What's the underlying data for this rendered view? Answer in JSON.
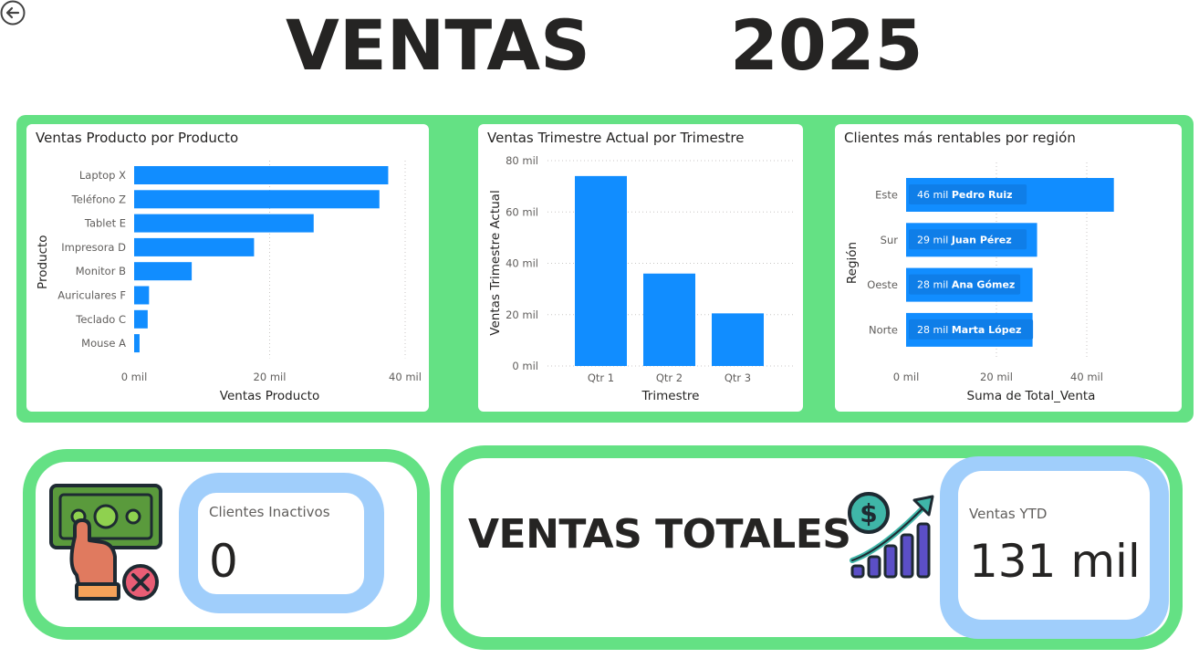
{
  "header": {
    "title_word": "VENTAS",
    "title_year": "2025"
  },
  "colors": {
    "accent_green": "#64e184",
    "bar_blue": "#118dff",
    "panel_blue": "#a0cefb"
  },
  "charts": {
    "product": {
      "title": "Ventas Producto por Producto",
      "xlabel": "Ventas Producto",
      "ylabel": "Producto",
      "ticks": [
        "0 mil",
        "20 mil",
        "40 mil"
      ]
    },
    "quarter": {
      "title": "Ventas Trimestre Actual por Trimestre",
      "xlabel": "Trimestre",
      "ylabel": "Ventas Trimestre Actual",
      "ticks": [
        "0 mil",
        "20 mil",
        "40 mil",
        "60 mil",
        "80 mil"
      ]
    },
    "region": {
      "title": "Clientes más rentables por región",
      "xlabel": "Suma de Total_Venta",
      "ylabel": "Región",
      "ticks": [
        "0 mil",
        "20 mil",
        "40 mil"
      ]
    }
  },
  "chart_data": [
    {
      "type": "bar",
      "orientation": "horizontal",
      "title": "Ventas Producto por Producto",
      "xlabel": "Ventas Producto",
      "ylabel": "Producto",
      "categories": [
        "Laptop X",
        "Teléfono Z",
        "Tablet E",
        "Impresora D",
        "Monitor B",
        "Auriculares F",
        "Teclado C",
        "Mouse A"
      ],
      "values": [
        37500,
        36200,
        26500,
        17700,
        8500,
        2200,
        2000,
        800
      ],
      "xlim": [
        0,
        40000
      ],
      "grid": true
    },
    {
      "type": "bar",
      "orientation": "vertical",
      "title": "Ventas Trimestre Actual por Trimestre",
      "xlabel": "Trimestre",
      "ylabel": "Ventas Trimestre Actual",
      "categories": [
        "Qtr 1",
        "Qtr 2",
        "Qtr 3"
      ],
      "values": [
        74000,
        36000,
        20500
      ],
      "ylim": [
        0,
        80000
      ],
      "grid": true
    },
    {
      "type": "bar",
      "orientation": "horizontal",
      "title": "Clientes más rentables por región",
      "xlabel": "Suma de Total_Venta",
      "ylabel": "Región",
      "categories": [
        "Este",
        "Sur",
        "Oeste",
        "Norte"
      ],
      "values": [
        46000,
        29000,
        28000,
        28000
      ],
      "value_labels": [
        "46 mil",
        "29 mil",
        "28 mil",
        "28 mil"
      ],
      "client_labels": [
        "Pedro Ruiz",
        "Juan Pérez",
        "Ana Gómez",
        "Marta López"
      ],
      "xlim": [
        0,
        46000
      ],
      "grid": true
    }
  ],
  "kpis": {
    "inactive": {
      "label": "Clientes Inactivos",
      "value": "0"
    },
    "totals_heading": "VENTAS TOTALES",
    "ytd": {
      "label": "Ventas YTD",
      "value": "131 mil"
    }
  },
  "icons": {
    "back": "arrow-left-circle-icon",
    "money": "money-hand-cancel-icon",
    "growth": "dollar-growth-chart-icon"
  }
}
